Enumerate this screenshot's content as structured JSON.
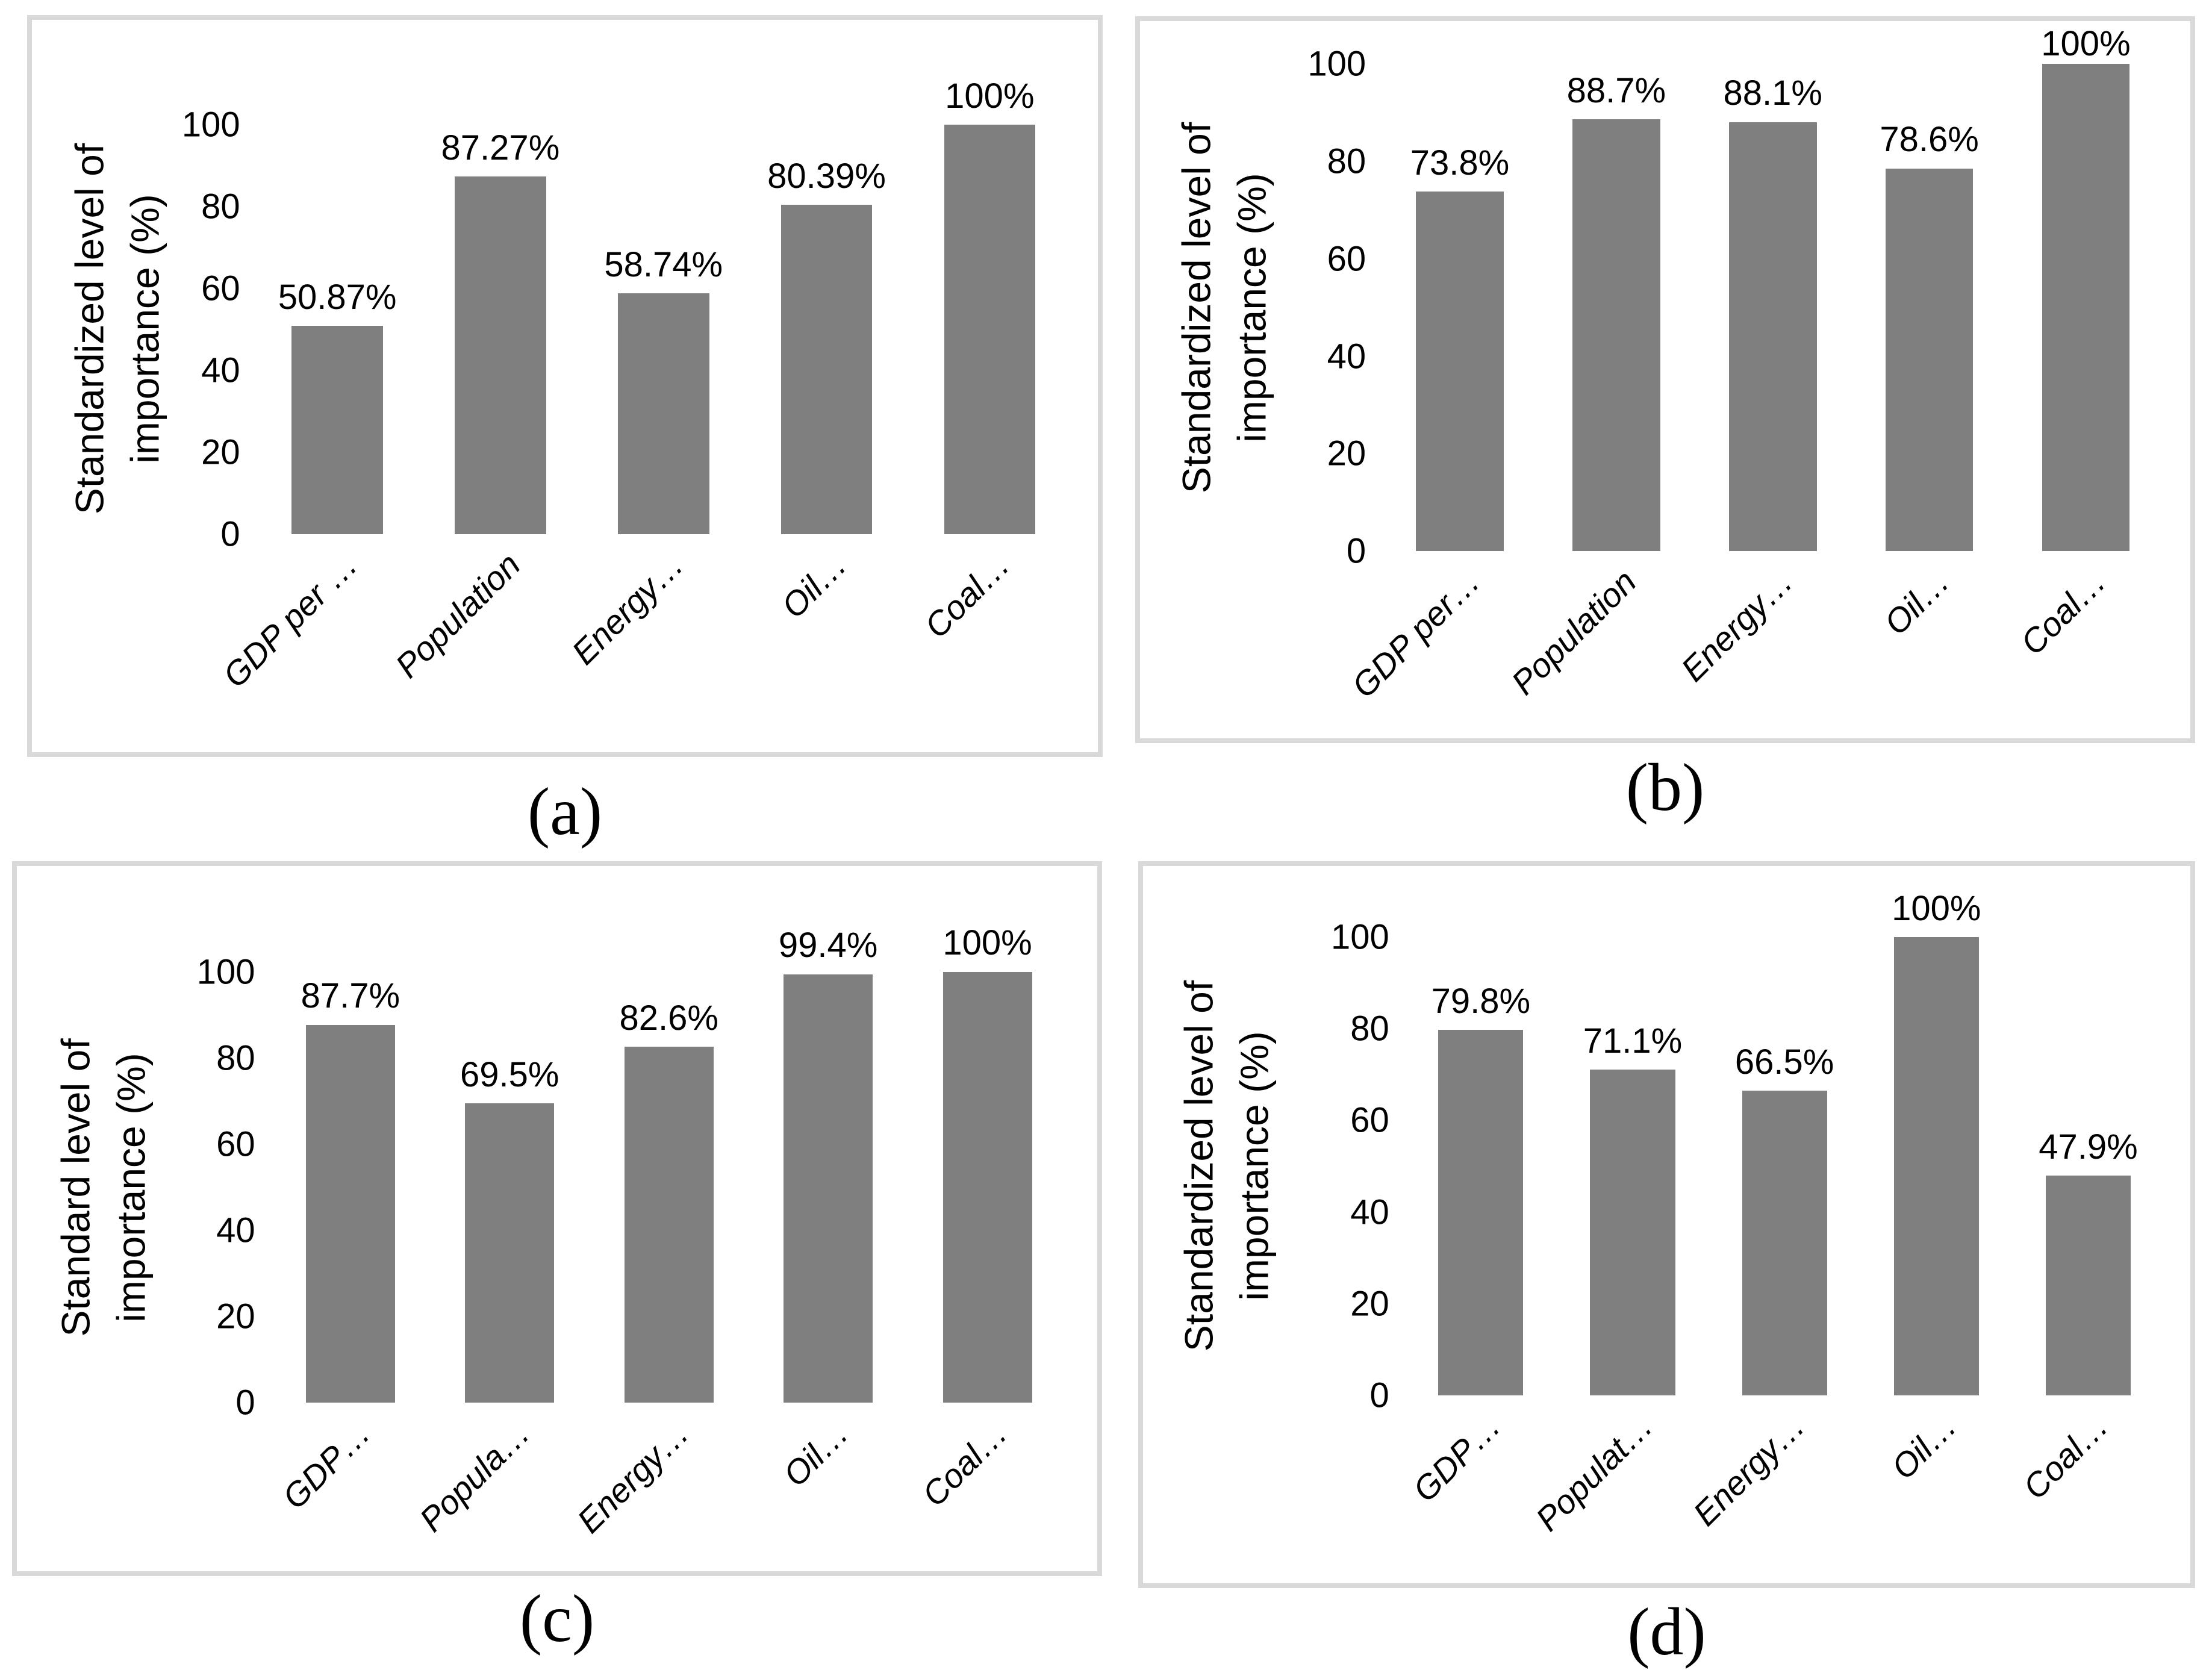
{
  "colors": {
    "bar": "#7f7f7f",
    "panel_border": "#d9d9d9",
    "text": "#000000",
    "background": "#ffffff"
  },
  "chart_data": [
    {
      "type": "bar",
      "caption": "(a)",
      "y_title_lines": [
        "Standardized level of",
        "importance (%)"
      ],
      "categories": [
        "GDP per …",
        "Population",
        "Energy…",
        "Oil…",
        "Coal…"
      ],
      "values": [
        50.87,
        87.27,
        58.74,
        80.39,
        100
      ],
      "value_labels": [
        "50.87%",
        "87.27%",
        "58.74%",
        "80.39%",
        "100%"
      ],
      "y_ticks": [
        100,
        80,
        60,
        40,
        20,
        0
      ],
      "ylim": [
        0,
        100
      ],
      "grid": false,
      "legend": "none"
    },
    {
      "type": "bar",
      "caption": "(b)",
      "y_title_lines": [
        "Standardized level of",
        "importance (%)"
      ],
      "categories": [
        "GDP per…",
        "Population",
        "Energy…",
        "Oil…",
        "Coal…"
      ],
      "values": [
        73.8,
        88.7,
        88.1,
        78.6,
        100
      ],
      "value_labels": [
        "73.8%",
        "88.7%",
        "88.1%",
        "78.6%",
        "100%"
      ],
      "y_ticks": [
        100,
        80,
        60,
        40,
        20,
        0
      ],
      "ylim": [
        0,
        100
      ],
      "grid": false,
      "legend": "none"
    },
    {
      "type": "bar",
      "caption": "(c)",
      "y_title_lines": [
        "Standard level of",
        "importance (%)"
      ],
      "categories": [
        "GDP…",
        "Popula…",
        "Energy…",
        "Oil…",
        "Coal…"
      ],
      "values": [
        87.7,
        69.5,
        82.6,
        99.4,
        100
      ],
      "value_labels": [
        "87.7%",
        "69.5%",
        "82.6%",
        "99.4%",
        "100%"
      ],
      "y_ticks": [
        100,
        80,
        60,
        40,
        20,
        0
      ],
      "ylim": [
        0,
        100
      ],
      "grid": false,
      "legend": "none"
    },
    {
      "type": "bar",
      "caption": "(d)",
      "y_title_lines": [
        "Standardized level of",
        "importance (%)"
      ],
      "categories": [
        "GDP…",
        "Populat…",
        "Energy…",
        "Oil…",
        "Coal…"
      ],
      "values": [
        79.8,
        71.1,
        66.5,
        100,
        47.9
      ],
      "value_labels": [
        "79.8%",
        "71.1%",
        "66.5%",
        "100%",
        "47.9%"
      ],
      "y_ticks": [
        100,
        80,
        60,
        40,
        20,
        0
      ],
      "ylim": [
        0,
        100
      ],
      "grid": false,
      "legend": "none"
    }
  ]
}
